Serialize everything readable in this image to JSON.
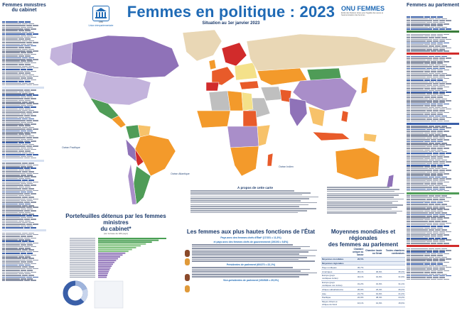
{
  "header": {
    "title": "Femmes en politique : 2023",
    "subtitle": "Situation au 1er janvier 2023",
    "ipu_name": "Union interparlementaire",
    "ipu_tagline": "Pour la démocratie. Pour tous.",
    "ipu_year": "1889",
    "un_women_word": "ONU FEMMES",
    "un_women_tagline": "Entité des Nations Unies pour l'égalité des sexes et l'autonomisation des femmes"
  },
  "left_column": {
    "title_line1": "Femmes ministres",
    "title_line2": "du cabinet"
  },
  "right_column": {
    "title": "Femmes au parlement"
  },
  "map": {
    "oceans": [
      "Océan Pacifique",
      "Océan Atlantique",
      "Océan Indien"
    ],
    "labels": [
      "Groenland",
      "Canada",
      "États-Unis d'Amérique",
      "Brésil",
      "Fédération de Russie",
      "Chine",
      "Australie",
      "Inde",
      "Mexique",
      "Argentine",
      "Arabie saoudite",
      "Algérie",
      "Libye",
      "Égypte",
      "Soudan",
      "Mongolie",
      "Kazakhstan",
      "Indonésie"
    ],
    "colors": {
      "deep_orange": "#e85b2a",
      "orange": "#f39a2b",
      "light_orange": "#f7c26a",
      "yellow": "#f4e18a",
      "beige": "#e9d7b5",
      "purple": "#8f72b8",
      "light_purple": "#c3b3dc",
      "lilac": "#a98ec9",
      "green": "#4f9c57",
      "red": "#d12b2b",
      "grey": "#bfbfbf"
    }
  },
  "about": {
    "title": "À propos de cette carte"
  },
  "portfolios": {
    "title_line1": "Portefeuilles détenus par les femmes ministres",
    "title_line2": "du cabinet*",
    "subtitle": "(sur la base de 180 pays)"
  },
  "heads": {
    "title": "Les femmes aux plus hautes fonctions de l'État",
    "line1": "Pays avec des femmes chefs d'État* (17/151 = 11,3%)",
    "line2": "et pays avec des femmes chefs de gouvernement (19/193 = 9,8%)",
    "line3": "Présidentes de parlement (60/273 = 22,1%)",
    "line4": "Vice-présidentes de parlement (153/528 = 29,0%)"
  },
  "averages": {
    "title_line1": "Moyennes mondiales et régionales",
    "title_line2": "des femmes au parlement",
    "world_label": "Moyennes mondiales",
    "world_value": "26,5%",
    "regional_label": "Moyennes régionales",
    "headers": [
      "",
      "Chambre unique ou basse",
      "Chambre haute ou Sénat",
      "Toutes chambres confondues"
    ],
    "rows": [
      {
        "name": "Pays nordiques",
        "a": "45,7%",
        "b": "",
        "c": ""
      },
      {
        "name": "Amériques",
        "a": "35,1%",
        "b": "36,0%",
        "c": "35,3%"
      },
      {
        "name": "Europe (pays nordiques inclus)",
        "a": "32,1%",
        "b": "31,0%",
        "c": "31,9%"
      },
      {
        "name": "Europe (pays nordiques non inclus)",
        "a": "31,2%",
        "b": "31,0%",
        "c": "31,1%"
      },
      {
        "name": "Afrique subsaharienne",
        "a": "26,9%",
        "b": "23,4%",
        "c": "26,4%"
      },
      {
        "name": "Asie",
        "a": "21,7%",
        "b": "19,0%",
        "c": "21,4%"
      },
      {
        "name": "Pacifique",
        "a": "22,0%",
        "b": "38,4%",
        "c": "24,2%"
      },
      {
        "name": "Moyen-Orient et Afrique du Nord",
        "a": "16,1%",
        "b": "13,3%",
        "c": "15,6%"
      }
    ]
  }
}
